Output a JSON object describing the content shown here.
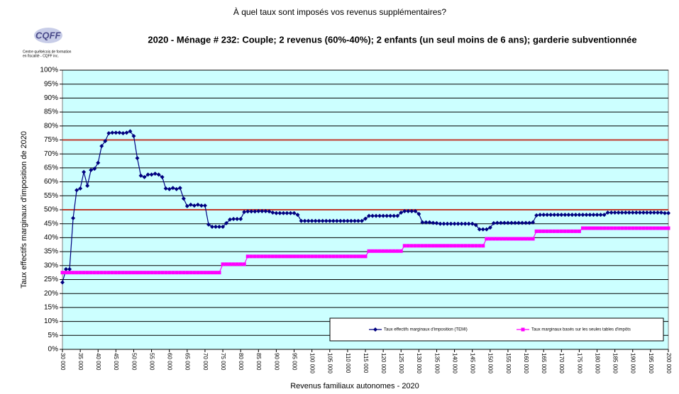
{
  "chart_data": {
    "type": "line",
    "title": "À quel taux sont imposés vos revenus supplémentaires?",
    "subtitle": "2020 - Ménage # 232: Couple; 2 revenus (60%-40%); 2 enfants (un seul moins de 6 ans); garderie subventionnée",
    "y_label": "Taux effectifs marginaux d'imposition de 2020",
    "x_label": "Revenus familiaux autonomes - 2020",
    "logo": {
      "name": "CQFF",
      "line1": "Centre québécois de formation",
      "line2": "en fiscalité - CQFF inc."
    },
    "xlim": [
      30000,
      200000
    ],
    "ylim": [
      0,
      100
    ],
    "grid": true,
    "legend": "bottom-right",
    "plot_background": "#ccffff",
    "reference_lines": [
      {
        "value": 75,
        "color": "#c0392b"
      },
      {
        "value": 50,
        "color": "#c0392b"
      }
    ],
    "xticks": [
      {
        "value": 30000,
        "label": "30 000"
      },
      {
        "value": 35000,
        "label": "35 000"
      },
      {
        "value": 40000,
        "label": "40 000"
      },
      {
        "value": 45000,
        "label": "45 000"
      },
      {
        "value": 50000,
        "label": "50 000"
      },
      {
        "value": 55000,
        "label": "55 000"
      },
      {
        "value": 60000,
        "label": "60 000"
      },
      {
        "value": 65000,
        "label": "65 000"
      },
      {
        "value": 70000,
        "label": "70 000"
      },
      {
        "value": 75000,
        "label": "75 000"
      },
      {
        "value": 80000,
        "label": "80 000"
      },
      {
        "value": 85000,
        "label": "85 000"
      },
      {
        "value": 90000,
        "label": "90 000"
      },
      {
        "value": 95000,
        "label": "95 000"
      },
      {
        "value": 100000,
        "label": "100 000"
      },
      {
        "value": 105000,
        "label": "105 000"
      },
      {
        "value": 110000,
        "label": "110 000"
      },
      {
        "value": 115000,
        "label": "115 000"
      },
      {
        "value": 120000,
        "label": "120 000"
      },
      {
        "value": 125000,
        "label": "125 000"
      },
      {
        "value": 130000,
        "label": "130 000"
      },
      {
        "value": 135000,
        "label": "135 000"
      },
      {
        "value": 140000,
        "label": "140 000"
      },
      {
        "value": 145000,
        "label": "145 000"
      },
      {
        "value": 150000,
        "label": "150 000"
      },
      {
        "value": 155000,
        "label": "155 000"
      },
      {
        "value": 160000,
        "label": "160 000"
      },
      {
        "value": 165000,
        "label": "165 000"
      },
      {
        "value": 170000,
        "label": "170 000"
      },
      {
        "value": 175000,
        "label": "175 000"
      },
      {
        "value": 180000,
        "label": "180 000"
      },
      {
        "value": 185000,
        "label": "185 000"
      },
      {
        "value": 190000,
        "label": "190 000"
      },
      {
        "value": 195000,
        "label": "195 000"
      },
      {
        "value": 200000,
        "label": "200 000"
      }
    ],
    "yticks": [
      {
        "value": 0,
        "label": "0%"
      },
      {
        "value": 5,
        "label": "5%"
      },
      {
        "value": 10,
        "label": "10%"
      },
      {
        "value": 15,
        "label": "15%"
      },
      {
        "value": 20,
        "label": "20%"
      },
      {
        "value": 25,
        "label": "25%"
      },
      {
        "value": 30,
        "label": "30%"
      },
      {
        "value": 35,
        "label": "35%"
      },
      {
        "value": 40,
        "label": "40%"
      },
      {
        "value": 45,
        "label": "45%"
      },
      {
        "value": 50,
        "label": "50%"
      },
      {
        "value": 55,
        "label": "55%"
      },
      {
        "value": 60,
        "label": "60%"
      },
      {
        "value": 65,
        "label": "65%"
      },
      {
        "value": 70,
        "label": "70%"
      },
      {
        "value": 75,
        "label": "75%"
      },
      {
        "value": 80,
        "label": "80%"
      },
      {
        "value": 85,
        "label": "85%"
      },
      {
        "value": 90,
        "label": "90%"
      },
      {
        "value": 95,
        "label": "95%"
      },
      {
        "value": 100,
        "label": "100%"
      }
    ],
    "x": [
      30000,
      31000,
      32000,
      33000,
      34000,
      35000,
      36000,
      37000,
      38000,
      39000,
      40000,
      41000,
      42000,
      43000,
      44000,
      45000,
      46000,
      47000,
      48000,
      49000,
      50000,
      51000,
      52000,
      53000,
      54000,
      55000,
      56000,
      57000,
      58000,
      59000,
      60000,
      61000,
      62000,
      63000,
      64000,
      65000,
      66000,
      67000,
      68000,
      69000,
      70000,
      71000,
      72000,
      73000,
      74000,
      75000,
      76000,
      77000,
      78000,
      79000,
      80000,
      81000,
      82000,
      83000,
      84000,
      85000,
      86000,
      87000,
      88000,
      89000,
      90000,
      91000,
      92000,
      93000,
      94000,
      95000,
      96000,
      97000,
      98000,
      99000,
      100000,
      101000,
      102000,
      103000,
      104000,
      105000,
      106000,
      107000,
      108000,
      109000,
      110000,
      111000,
      112000,
      113000,
      114000,
      115000,
      116000,
      117000,
      118000,
      119000,
      120000,
      121000,
      122000,
      123000,
      124000,
      125000,
      126000,
      127000,
      128000,
      129000,
      130000,
      131000,
      132000,
      133000,
      134000,
      135000,
      136000,
      137000,
      138000,
      139000,
      140000,
      141000,
      142000,
      143000,
      144000,
      145000,
      146000,
      147000,
      148000,
      149000,
      150000,
      151000,
      152000,
      153000,
      154000,
      155000,
      156000,
      157000,
      158000,
      159000,
      160000,
      161000,
      162000,
      163000,
      164000,
      165000,
      166000,
      167000,
      168000,
      169000,
      170000,
      171000,
      172000,
      173000,
      174000,
      175000,
      176000,
      177000,
      178000,
      179000,
      180000,
      181000,
      182000,
      183000,
      184000,
      185000,
      186000,
      187000,
      188000,
      189000,
      190000,
      191000,
      192000,
      193000,
      194000,
      195000,
      196000,
      197000,
      198000,
      199000,
      200000
    ],
    "series": [
      {
        "name": "Taux effectifs marginaux d'imposition (TEMI)",
        "color": "#000080",
        "marker": "diamond",
        "values": [
          24,
          28.7,
          28.7,
          47,
          57,
          57.6,
          63.5,
          58.6,
          64.2,
          64.7,
          66.8,
          72.8,
          74.6,
          77.4,
          77.6,
          77.6,
          77.6,
          77.4,
          77.6,
          78.1,
          76.4,
          68.5,
          62.2,
          61.7,
          62.6,
          62.6,
          62.9,
          62.6,
          61.7,
          57.6,
          57.4,
          57.8,
          57.4,
          57.8,
          54,
          51.3,
          51.8,
          51.5,
          51.8,
          51.5,
          51.5,
          44.7,
          43.9,
          43.9,
          43.9,
          43.9,
          45.2,
          46.5,
          46.7,
          46.7,
          46.7,
          49.2,
          49.4,
          49.4,
          49.4,
          49.5,
          49.5,
          49.5,
          49.4,
          49,
          48.8,
          48.8,
          48.8,
          48.8,
          48.8,
          48.8,
          48.2,
          46,
          46,
          46,
          46,
          46,
          46,
          46,
          46,
          46,
          46,
          46,
          46,
          46,
          46,
          46,
          46,
          46,
          46,
          46.8,
          47.8,
          47.8,
          47.8,
          47.8,
          47.8,
          47.8,
          47.8,
          47.8,
          47.8,
          49,
          49.5,
          49.5,
          49.5,
          49.5,
          48.5,
          45.5,
          45.5,
          45.5,
          45.3,
          45.2,
          45,
          45,
          45,
          45,
          45,
          45,
          45,
          45,
          45,
          45,
          44.5,
          43,
          43,
          43,
          43.6,
          45.2,
          45.3,
          45.3,
          45.3,
          45.3,
          45.3,
          45.3,
          45.3,
          45.3,
          45.3,
          45.3,
          45.5,
          48,
          48.2,
          48.2,
          48.2,
          48.2,
          48.2,
          48.2,
          48.2,
          48.2,
          48.2,
          48.2,
          48.2,
          48.2,
          48.2,
          48.2,
          48.2,
          48.2,
          48.2,
          48.2,
          48.2,
          49,
          49,
          49,
          49,
          49,
          49,
          49,
          49,
          49,
          49,
          49,
          49,
          49,
          49,
          49,
          49,
          48.8,
          48.8
        ]
      },
      {
        "name": "Taux marginaux basés sur les seules tables d'impôts",
        "color": "#ff00ff",
        "marker": "square",
        "values": [
          27.5,
          27.5,
          27.5,
          27.5,
          27.5,
          27.5,
          27.5,
          27.5,
          27.5,
          27.5,
          27.5,
          27.5,
          27.5,
          27.5,
          27.5,
          27.5,
          27.5,
          27.5,
          27.5,
          27.5,
          27.5,
          27.5,
          27.5,
          27.5,
          27.5,
          27.5,
          27.5,
          27.5,
          27.5,
          27.5,
          27.5,
          27.5,
          27.5,
          27.5,
          27.5,
          27.5,
          27.5,
          27.5,
          27.5,
          27.5,
          27.5,
          27.5,
          27.5,
          27.5,
          27.5,
          30.5,
          30.5,
          30.5,
          30.5,
          30.5,
          30.5,
          30.5,
          33.3,
          33.3,
          33.3,
          33.3,
          33.3,
          33.3,
          33.3,
          33.3,
          33.3,
          33.3,
          33.3,
          33.3,
          33.3,
          33.3,
          33.3,
          33.3,
          33.3,
          33.3,
          33.3,
          33.3,
          33.3,
          33.3,
          33.3,
          33.3,
          33.3,
          33.3,
          33.3,
          33.3,
          33.3,
          33.3,
          33.3,
          33.3,
          33.3,
          33.3,
          35.2,
          35.2,
          35.2,
          35.2,
          35.2,
          35.2,
          35.2,
          35.2,
          35.2,
          35.2,
          37.1,
          37.1,
          37.1,
          37.1,
          37.1,
          37.1,
          37.1,
          37.1,
          37.1,
          37.1,
          37.1,
          37.1,
          37.1,
          37.1,
          37.1,
          37.1,
          37.1,
          37.1,
          37.1,
          37.1,
          37.1,
          37.1,
          37.1,
          39.6,
          39.6,
          39.6,
          39.6,
          39.6,
          39.6,
          39.6,
          39.6,
          39.6,
          39.6,
          39.6,
          39.6,
          39.6,
          39.6,
          42.3,
          42.3,
          42.3,
          42.3,
          42.3,
          42.3,
          42.3,
          42.3,
          42.3,
          42.3,
          42.3,
          42.3,
          42.3,
          43.4,
          43.4,
          43.4,
          43.4,
          43.4,
          43.4,
          43.4,
          43.4,
          43.4,
          43.4,
          43.4,
          43.4,
          43.4,
          43.4,
          43.4,
          43.4,
          43.4,
          43.4,
          43.4,
          43.4,
          43.4,
          43.4,
          43.4,
          43.4,
          43.4
        ]
      }
    ]
  }
}
